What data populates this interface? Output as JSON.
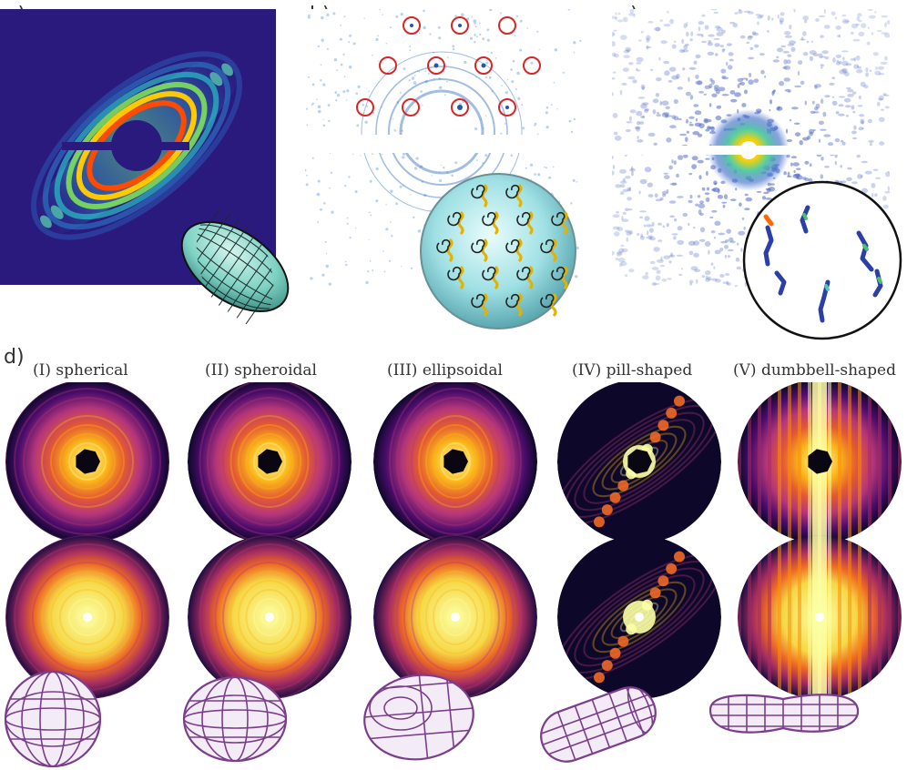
{
  "figure": {
    "panel_labels": [
      "a)",
      "b)",
      "c)",
      "d)"
    ],
    "shape_classes": [
      {
        "label": "(I) spherical",
        "key": "I"
      },
      {
        "label": "(II) spheroidal",
        "key": "II"
      },
      {
        "label": "(III) ellipsoidal",
        "key": "III"
      },
      {
        "label": "(IV) pill-shaped",
        "key": "IV"
      },
      {
        "label": "(V) dumbbell-shaped",
        "key": "V"
      }
    ],
    "colors": {
      "jet_background": "#2a1a7e",
      "inferno_dark": "#0d0829",
      "inferno_mid": "#b5367a",
      "inferno_bright": "#fcffa4",
      "bragg_circle": "#d62728",
      "wireframe_purple": "#7a3e8a",
      "spheroid_teal": "#7fd3c4"
    },
    "icons": [
      "prolate-spheroid-wireframe",
      "molecular-crystal-inset",
      "droplet-blob-inset",
      "shape-wireframes"
    ]
  }
}
